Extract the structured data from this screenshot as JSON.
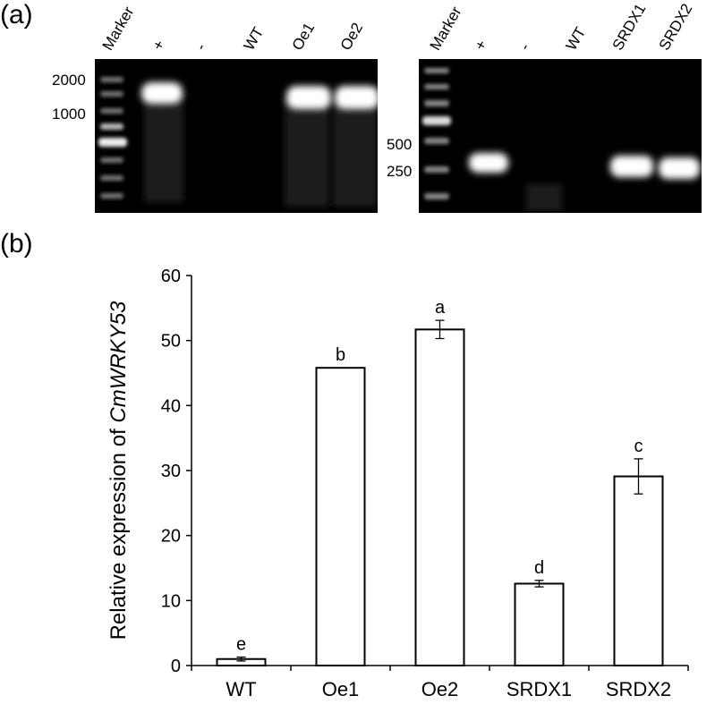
{
  "panels": {
    "a": "(a)",
    "b": "(b)"
  },
  "gel_left": {
    "lanes": [
      "Marker",
      "+",
      "-",
      "WT",
      "Oe1",
      "Oe2"
    ],
    "size_markers": [
      "2000",
      "1000"
    ]
  },
  "gel_right": {
    "lanes": [
      "Marker",
      "+",
      "-",
      "WT",
      "SRDX1",
      "SRDX2"
    ],
    "size_markers": [
      "500",
      "250"
    ]
  },
  "chart_data": {
    "type": "bar",
    "categories": [
      "WT",
      "Oe1",
      "Oe2",
      "SRDX1",
      "SRDX2"
    ],
    "values": [
      1.0,
      45.8,
      51.7,
      12.6,
      29.1
    ],
    "errors": [
      0.3,
      0.0,
      1.4,
      0.5,
      2.7
    ],
    "significance": [
      "e",
      "b",
      "a",
      "d",
      "c"
    ],
    "ylabel_prefix": "Relative expression of ",
    "ylabel_gene": "CmWRKY53",
    "ylim": [
      0,
      60
    ],
    "yticks": [
      0,
      10,
      20,
      30,
      40,
      50,
      60
    ],
    "bar_fill": "#ffffff",
    "bar_stroke": "#000000"
  }
}
